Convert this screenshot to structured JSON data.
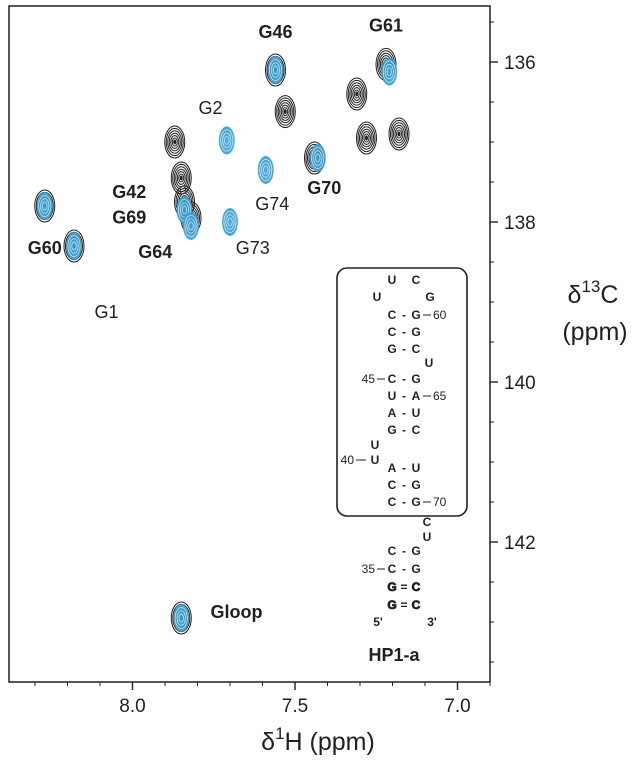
{
  "chart_data": {
    "type": "scatter",
    "title": "",
    "xlabel_symbol": "δ",
    "xlabel_sup": "1",
    "xlabel_rest": "H (ppm)",
    "ylabel_symbol": "δ",
    "ylabel_sup": "13",
    "ylabel_rest": "C",
    "ylabel_unit": "(ppm)",
    "xlim": [
      8.38,
      6.9
    ],
    "ylim": [
      135.3,
      143.75
    ],
    "x_ticks": [
      8.0,
      7.5,
      7.0
    ],
    "x_tick_labels": [
      "8.0",
      "7.5",
      "7.0"
    ],
    "y_ticks": [
      136,
      138,
      140,
      142
    ],
    "y_tick_labels": [
      "136",
      "138",
      "140",
      "142"
    ],
    "series": [
      {
        "color": "#231f20",
        "peaks": [
          {
            "x": 8.27,
            "y": 137.8
          },
          {
            "x": 8.18,
            "y": 138.3
          },
          {
            "x": 7.87,
            "y": 137.0
          },
          {
            "x": 7.85,
            "y": 137.45
          },
          {
            "x": 7.84,
            "y": 137.75
          },
          {
            "x": 7.82,
            "y": 137.95
          },
          {
            "x": 7.56,
            "y": 136.1
          },
          {
            "x": 7.53,
            "y": 136.62
          },
          {
            "x": 7.44,
            "y": 137.2
          },
          {
            "x": 7.31,
            "y": 136.4
          },
          {
            "x": 7.28,
            "y": 136.95
          },
          {
            "x": 7.22,
            "y": 136.03
          },
          {
            "x": 7.18,
            "y": 136.9
          },
          {
            "x": 7.85,
            "y": 142.95
          }
        ]
      },
      {
        "color": "#39a0d2",
        "peaks": [
          {
            "x": 8.27,
            "y": 137.8
          },
          {
            "x": 8.18,
            "y": 138.3
          },
          {
            "x": 7.84,
            "y": 137.85
          },
          {
            "x": 7.82,
            "y": 138.05
          },
          {
            "x": 7.71,
            "y": 136.98
          },
          {
            "x": 7.7,
            "y": 138.0
          },
          {
            "x": 7.59,
            "y": 137.35
          },
          {
            "x": 7.56,
            "y": 136.1
          },
          {
            "x": 7.43,
            "y": 137.2
          },
          {
            "x": 7.21,
            "y": 136.12
          },
          {
            "x": 7.85,
            "y": 142.95
          }
        ]
      }
    ],
    "peak_labels": [
      {
        "text": "G46",
        "bold": true,
        "x": 7.56,
        "y": 135.7
      },
      {
        "text": "G61",
        "bold": true,
        "x": 7.22,
        "y": 135.62
      },
      {
        "text": "G2",
        "bold": false,
        "x": 7.76,
        "y": 136.65
      },
      {
        "text": "G74",
        "bold": false,
        "x": 7.57,
        "y": 137.85
      },
      {
        "text": "G70",
        "bold": true,
        "x": 7.41,
        "y": 137.65
      },
      {
        "text": "G42",
        "bold": true,
        "x": 8.01,
        "y": 137.7
      },
      {
        "text": "G69",
        "bold": true,
        "x": 8.01,
        "y": 138.02
      },
      {
        "text": "G64",
        "bold": true,
        "x": 7.93,
        "y": 138.45
      },
      {
        "text": "G73",
        "bold": false,
        "x": 7.63,
        "y": 138.4
      },
      {
        "text": "G60",
        "bold": true,
        "x": 8.27,
        "y": 138.4
      },
      {
        "text": "G1",
        "bold": false,
        "x": 8.08,
        "y": 139.2
      },
      {
        "text": "Gloop",
        "bold": true,
        "x": 7.68,
        "y": 142.95
      }
    ]
  },
  "hairpin": {
    "title": "HP1-a",
    "loop_top": [
      "U",
      "C"
    ],
    "loop_side": [
      "U",
      "G"
    ],
    "pairs_upper": [
      {
        "left": "C",
        "right": "G",
        "num": "60"
      },
      {
        "left": "C",
        "right": "G",
        "num": ""
      },
      {
        "left": "G",
        "right": "C",
        "num": ""
      }
    ],
    "bulge_u1": "U",
    "pairs_mid": [
      {
        "left": "C",
        "right": "G",
        "num": "",
        "lnum": "45"
      },
      {
        "left": "U",
        "right": "A",
        "num": "65",
        "lnum": ""
      },
      {
        "left": "A",
        "right": "U",
        "num": "",
        "lnum": ""
      },
      {
        "left": "G",
        "right": "C",
        "num": "",
        "lnum": ""
      }
    ],
    "bulge_u2": "U",
    "bulge_u3_num": "40",
    "bulge_u3": "U",
    "pairs_lower": [
      {
        "left": "A",
        "right": "U",
        "num": ""
      },
      {
        "left": "C",
        "right": "G",
        "num": ""
      },
      {
        "left": "C",
        "right": "G",
        "num": "70"
      }
    ],
    "bulge_c": "C",
    "bulge_u4": "U",
    "pairs_stem": [
      {
        "left": "C",
        "right": "G",
        "num": "",
        "lnum": ""
      },
      {
        "left": "C",
        "right": "G",
        "num": "",
        "lnum": "35"
      },
      {
        "left": "G",
        "right": "C",
        "num": "",
        "lnum": ""
      },
      {
        "left": "G",
        "right": "C",
        "num": "",
        "lnum": ""
      }
    ],
    "end5": "5'",
    "end3": "3'"
  }
}
